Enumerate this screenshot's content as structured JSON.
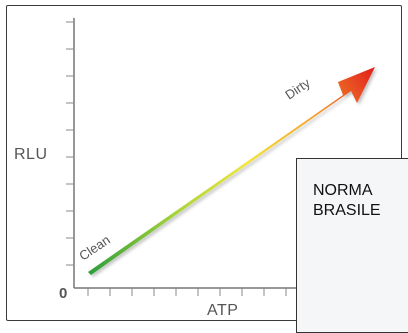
{
  "diagram": {
    "y_axis_label": "RLU",
    "x_axis_label": "ATP",
    "origin_label": "0",
    "start_label": "Clean",
    "end_label": "Dirty",
    "gradient_colors": [
      "#2e9e3a",
      "#a8d43a",
      "#f2e63a",
      "#f5a028",
      "#e11d1d"
    ]
  },
  "note": {
    "text": "NORMA\nBRASILE"
  }
}
